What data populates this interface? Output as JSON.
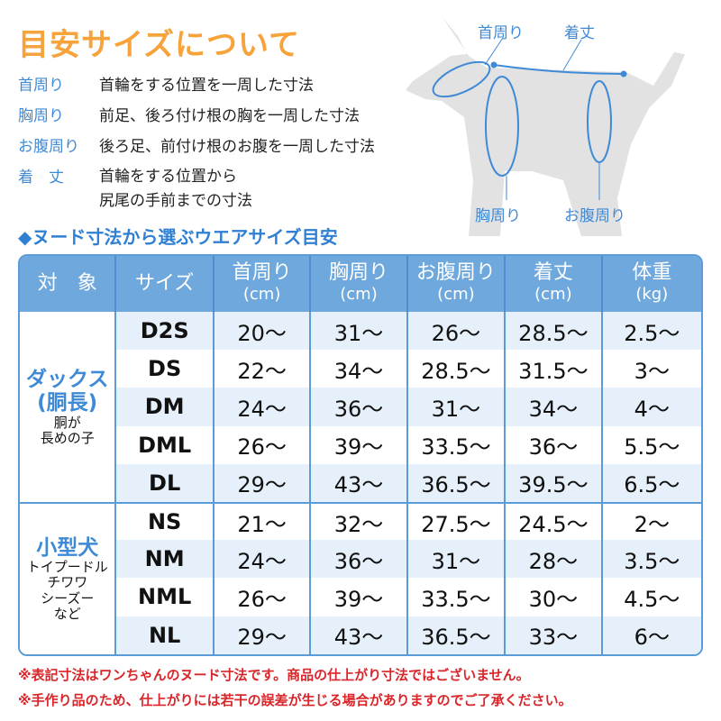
{
  "title": "目安サイズについて",
  "definitions": [
    {
      "key": "首周り",
      "value": "首輪をする位置を一周した寸法"
    },
    {
      "key": "胸周り",
      "value": "前足、後ろ付け根の胸を一周した寸法"
    },
    {
      "key": "お腹周り",
      "value": "後ろ足、前付け根のお腹を一周した寸法"
    },
    {
      "key": "着　丈",
      "value": "首輪をする位置から",
      "value2": "尻尾の手前までの寸法"
    }
  ],
  "diagram": {
    "neck": "首周り",
    "length": "着丈",
    "chest": "胸周り",
    "belly": "お腹周り"
  },
  "subtitle": "◆ヌード寸法から選ぶウエアサイズ目安",
  "table": {
    "headers": [
      {
        "t": "対　象"
      },
      {
        "t": "サイズ"
      },
      {
        "t": "首周り",
        "u": "(cm)"
      },
      {
        "t": "胸周り",
        "u": "(cm)"
      },
      {
        "t": "お腹周り",
        "u": "(cm)"
      },
      {
        "t": "着丈",
        "u": "(cm)"
      },
      {
        "t": "体重",
        "u": "(kg)"
      }
    ],
    "groups": [
      {
        "main": "ダックス",
        "main2": "(胴長)",
        "sub": [
          "胴が",
          "長めの子"
        ],
        "rows": [
          [
            "D2S",
            "20～",
            "31～",
            "26～",
            "28.5～",
            "2.5～"
          ],
          [
            "DS",
            "22～",
            "34～",
            "28.5～",
            "31.5～",
            "3～"
          ],
          [
            "DM",
            "24～",
            "36～",
            "31～",
            "34～",
            "4～"
          ],
          [
            "DML",
            "26～",
            "39～",
            "33.5～",
            "36～",
            "5.5～"
          ],
          [
            "DL",
            "29～",
            "43～",
            "36.5～",
            "39.5～",
            "6.5～"
          ]
        ]
      },
      {
        "main": "小型犬",
        "sub": [
          "トイプードル",
          "チワワ",
          "シーズー",
          "など"
        ],
        "rows": [
          [
            "NS",
            "21～",
            "32～",
            "27.5～",
            "24.5～",
            "2～"
          ],
          [
            "NM",
            "24～",
            "36～",
            "31～",
            "28～",
            "3.5～"
          ],
          [
            "NML",
            "26～",
            "39～",
            "33.5～",
            "30～",
            "4.5～"
          ],
          [
            "NL",
            "29～",
            "43～",
            "36.5～",
            "33～",
            "6～"
          ]
        ]
      }
    ]
  },
  "notes": [
    "※表記寸法はワンちゃんのヌード寸法です。商品の仕上がり寸法ではございません。",
    "※手作り品のため、仕上がりには若干の誤差が生じる場合がありますのでご了承ください。"
  ]
}
